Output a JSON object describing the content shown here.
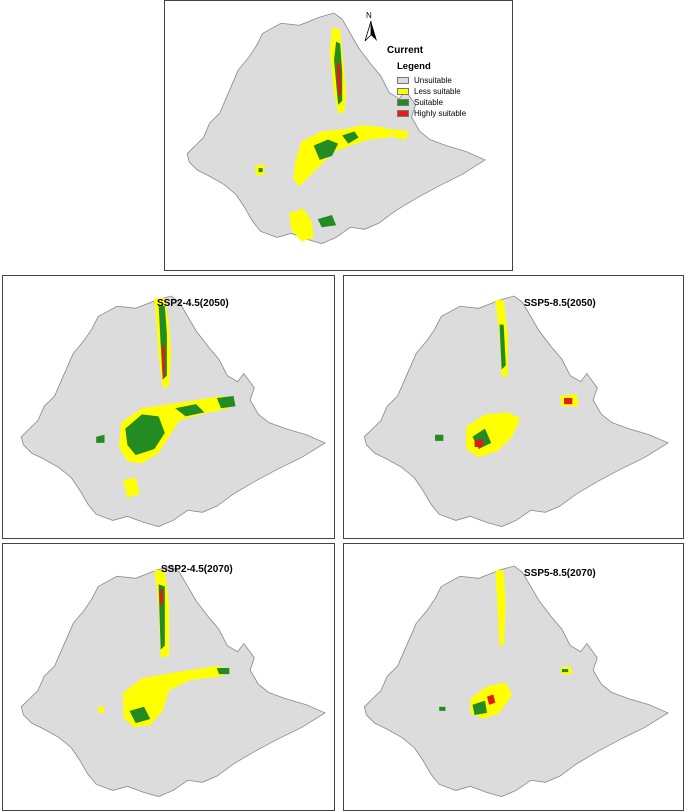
{
  "colors": {
    "unsuitable": "#dcdcdc",
    "less_suitable": "#ffff00",
    "suitable": "#228b22",
    "highly_suitable": "#e41a1c"
  },
  "legend": {
    "title": "Legend",
    "items": [
      {
        "label": "Unsuitable",
        "color": "#dcdcdc"
      },
      {
        "label": "Less suitable",
        "color": "#ffff00"
      },
      {
        "label": "Suitable",
        "color": "#228b22"
      },
      {
        "label": "Highly suitable",
        "color": "#e41a1c"
      }
    ]
  },
  "north_arrow": {
    "label": "N",
    "icon": "north-arrow-icon"
  },
  "panels": {
    "current": {
      "title": "Current"
    },
    "ssp245_2050": {
      "title": "SSP2-4.5(2050)"
    },
    "ssp585_2050": {
      "title": "SSP5-8.5(2050)"
    },
    "ssp245_2070": {
      "title": "SSP2-4.5(2070)"
    },
    "ssp585_2070": {
      "title": "SSP5-8.5(2070)"
    }
  }
}
